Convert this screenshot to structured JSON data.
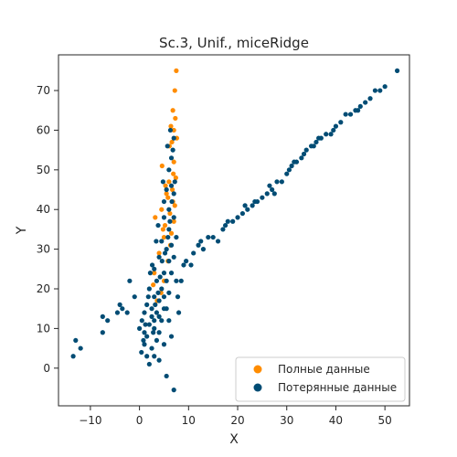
{
  "chart_data": {
    "type": "scatter",
    "title": "Sc.3, Unif., miceRidge",
    "xlabel": "X",
    "ylabel": "Y",
    "xlim": [
      -16.5,
      55
    ],
    "ylim": [
      -9.5,
      79
    ],
    "xticks": [
      -10,
      0,
      10,
      20,
      30,
      40,
      50
    ],
    "yticks": [
      0,
      10,
      20,
      30,
      40,
      50,
      60,
      70
    ],
    "grid": false,
    "legend_position": "lower-right",
    "series": [
      {
        "name": "Полные данные",
        "color": "#ff8c00",
        "points": [
          [
            7.5,
            75
          ],
          [
            7.2,
            70
          ],
          [
            6.8,
            65
          ],
          [
            7.3,
            63
          ],
          [
            7.0,
            60
          ],
          [
            6.6,
            57
          ],
          [
            7.0,
            52
          ],
          [
            4.6,
            51
          ],
          [
            7.4,
            48
          ],
          [
            6.0,
            47
          ],
          [
            6.7,
            45
          ],
          [
            5.8,
            43
          ],
          [
            7.2,
            41
          ],
          [
            4.5,
            40
          ],
          [
            6.2,
            39
          ],
          [
            3.2,
            38
          ],
          [
            7.0,
            37
          ],
          [
            5.2,
            36
          ],
          [
            6.5,
            34
          ],
          [
            5.0,
            33
          ],
          [
            6.3,
            31
          ],
          [
            4.0,
            29
          ],
          [
            5.8,
            27
          ],
          [
            3.0,
            24
          ],
          [
            5.0,
            22
          ],
          [
            2.8,
            21
          ],
          [
            4.4,
            19
          ],
          [
            3.6,
            17
          ],
          [
            6.1,
            56
          ],
          [
            6.9,
            49
          ],
          [
            5.5,
            44
          ],
          [
            7.6,
            58
          ],
          [
            6.4,
            61
          ],
          [
            5.3,
            46
          ],
          [
            6.8,
            42
          ],
          [
            4.8,
            35
          ]
        ]
      },
      {
        "name": "Потерянные данные",
        "color": "#004c74",
        "points": [
          [
            -13.5,
            3
          ],
          [
            -13.0,
            7
          ],
          [
            -12,
            5
          ],
          [
            -7.5,
            9
          ],
          [
            -7.5,
            13
          ],
          [
            -6.5,
            12
          ],
          [
            -4.5,
            14
          ],
          [
            -4,
            16
          ],
          [
            -3.5,
            15
          ],
          [
            -2.5,
            14
          ],
          [
            -1,
            18
          ],
          [
            -2,
            22
          ],
          [
            0,
            10
          ],
          [
            0.5,
            12
          ],
          [
            1,
            9
          ],
          [
            1,
            14
          ],
          [
            1,
            6
          ],
          [
            1.5,
            8
          ],
          [
            1.5,
            3
          ],
          [
            1.5,
            16
          ],
          [
            2,
            11
          ],
          [
            2,
            1
          ],
          [
            2,
            20
          ],
          [
            2.5,
            13
          ],
          [
            2.5,
            5
          ],
          [
            2.5,
            15
          ],
          [
            3,
            12
          ],
          [
            3,
            10
          ],
          [
            3,
            3
          ],
          [
            3,
            18
          ],
          [
            3,
            25
          ],
          [
            3.5,
            14
          ],
          [
            3.5,
            7
          ],
          [
            3.5,
            22
          ],
          [
            4,
            13
          ],
          [
            4,
            17
          ],
          [
            4,
            9
          ],
          [
            4,
            28
          ],
          [
            4,
            2
          ],
          [
            4.5,
            20
          ],
          [
            4.5,
            12
          ],
          [
            4.5,
            32
          ],
          [
            5,
            15
          ],
          [
            5,
            18
          ],
          [
            5,
            24
          ],
          [
            5,
            38
          ],
          [
            5,
            6
          ],
          [
            5,
            42
          ],
          [
            5.5,
            30
          ],
          [
            5.5,
            22
          ],
          [
            5.5,
            15
          ],
          [
            5.5,
            45
          ],
          [
            5.5,
            -2
          ],
          [
            6,
            35
          ],
          [
            6,
            27
          ],
          [
            6,
            19
          ],
          [
            6,
            50
          ],
          [
            6,
            12
          ],
          [
            6,
            40
          ],
          [
            6.5,
            46
          ],
          [
            6.5,
            53
          ],
          [
            6.5,
            31
          ],
          [
            6.5,
            24
          ],
          [
            6.5,
            8
          ],
          [
            7,
            58
          ],
          [
            7,
            44
          ],
          [
            7,
            38
          ],
          [
            7,
            28
          ],
          [
            7,
            -5.5
          ],
          [
            7.5,
            22
          ],
          [
            7.5,
            33
          ],
          [
            6.8,
            55
          ],
          [
            6.3,
            60
          ],
          [
            5.7,
            56
          ],
          [
            4.8,
            47
          ],
          [
            3.8,
            36
          ],
          [
            3.4,
            32
          ],
          [
            2.6,
            26
          ],
          [
            2.2,
            24
          ],
          [
            1.8,
            18
          ],
          [
            1.2,
            11
          ],
          [
            0.8,
            7
          ],
          [
            0.4,
            4
          ],
          [
            2.8,
            9
          ],
          [
            3.2,
            16
          ],
          [
            3.8,
            19
          ],
          [
            4.2,
            23
          ],
          [
            4.6,
            27
          ],
          [
            5.2,
            29
          ],
          [
            5.8,
            33
          ],
          [
            6.2,
            37
          ],
          [
            6.6,
            42
          ],
          [
            7.2,
            47
          ],
          [
            7.8,
            18
          ],
          [
            8,
            14
          ],
          [
            8.5,
            22
          ],
          [
            9,
            26
          ],
          [
            9.5,
            27
          ],
          [
            10.5,
            26
          ],
          [
            11,
            29
          ],
          [
            12,
            31
          ],
          [
            13,
            30
          ],
          [
            14,
            33
          ],
          [
            15,
            33
          ],
          [
            16,
            32
          ],
          [
            17,
            35
          ],
          [
            18,
            37
          ],
          [
            19,
            37
          ],
          [
            20,
            38
          ],
          [
            21,
            39
          ],
          [
            22,
            40
          ],
          [
            23,
            41
          ],
          [
            24,
            42
          ],
          [
            25,
            43
          ],
          [
            26,
            44
          ],
          [
            27,
            45
          ],
          [
            28,
            47
          ],
          [
            29,
            47
          ],
          [
            30,
            49
          ],
          [
            31,
            51
          ],
          [
            32,
            52
          ],
          [
            33,
            53
          ],
          [
            34,
            55
          ],
          [
            35,
            56
          ],
          [
            36,
            57
          ],
          [
            37,
            58
          ],
          [
            38,
            59
          ],
          [
            39,
            59
          ],
          [
            40,
            61
          ],
          [
            41,
            62
          ],
          [
            42,
            64
          ],
          [
            43,
            64
          ],
          [
            44,
            65
          ],
          [
            45,
            66
          ],
          [
            46,
            67
          ],
          [
            47,
            68
          ],
          [
            48,
            70
          ],
          [
            50,
            71
          ],
          [
            52.5,
            75
          ],
          [
            21.5,
            41
          ],
          [
            26.5,
            46
          ],
          [
            30.5,
            50
          ],
          [
            35.5,
            56
          ],
          [
            39.5,
            60
          ],
          [
            44.5,
            65
          ],
          [
            49,
            70
          ],
          [
            17.5,
            36
          ],
          [
            12.5,
            32
          ],
          [
            23.5,
            42
          ],
          [
            27.5,
            44
          ],
          [
            31.5,
            52
          ],
          [
            33.5,
            54
          ],
          [
            36.5,
            58
          ]
        ]
      }
    ]
  }
}
